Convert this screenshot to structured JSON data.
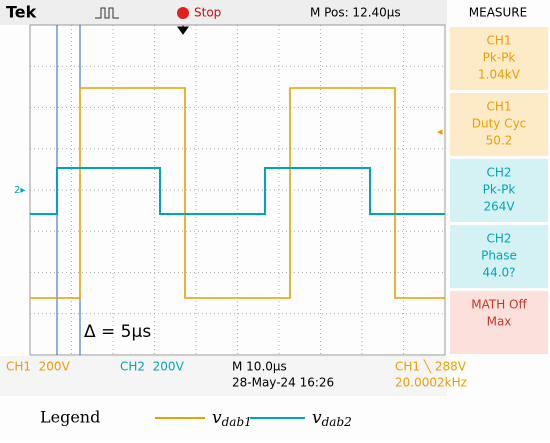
{
  "header": {
    "brand": "Tek",
    "status": "Stop",
    "position": "M Pos: 12.40µs",
    "panel_title": "MEASURE"
  },
  "measurements": [
    {
      "channel": "CH1",
      "label": "Pk-Pk",
      "value": "1.04kV"
    },
    {
      "channel": "CH1",
      "label": "Duty Cyc",
      "value": "50.2"
    },
    {
      "channel": "CH2",
      "label": "Pk-Pk",
      "value": "264V"
    },
    {
      "channel": "CH2",
      "label": "Phase",
      "value": "44.0?"
    },
    {
      "channel": "MATH Off",
      "label": "Max"
    }
  ],
  "footer": {
    "ch1_scale": "CH1  200V",
    "ch2_scale": "CH2  200V",
    "timebase": "M 10.0µs",
    "date": "28-May-24 16:26",
    "trigger": "CH1 ╲ 288V",
    "frequency": "20.0002kHz"
  },
  "annotation": "Δ = 5μs",
  "legend": {
    "title": "Legend",
    "items": [
      {
        "symbol": "v",
        "subscript": "dab1"
      },
      {
        "symbol": "v",
        "subscript": "dab2"
      }
    ]
  }
}
